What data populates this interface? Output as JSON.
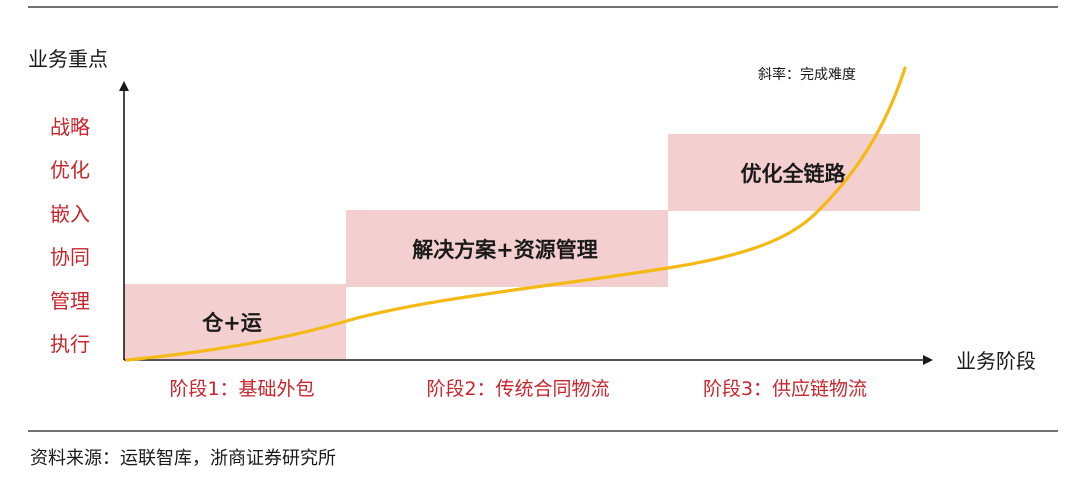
{
  "y_axis": {
    "title": "业务重点",
    "items": [
      "战略",
      "优化",
      "嵌入",
      "协同",
      "管理",
      "执行"
    ]
  },
  "x_axis": {
    "title": "业务阶段"
  },
  "stages": [
    {
      "label": "阶段1：基础外包",
      "box": "仓+运"
    },
    {
      "label": "阶段2：传统合同物流",
      "box": "解决方案+资源管理"
    },
    {
      "label": "阶段3：供应链物流",
      "box": "优化全链路"
    }
  ],
  "curve_note": "斜率：完成难度",
  "source": "资料来源：运联智库，浙商证券研究所",
  "colors": {
    "box_fill": "#f3cfd0",
    "curve": "#f5b914",
    "accent_text": "#c9252c"
  }
}
